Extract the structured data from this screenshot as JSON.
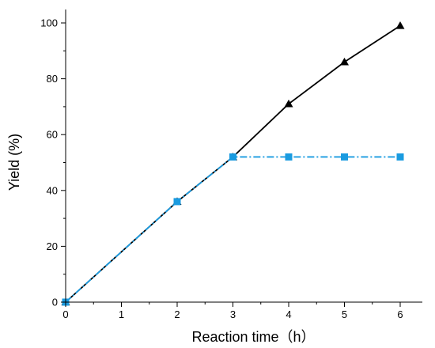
{
  "chart_data": {
    "type": "line",
    "title": "",
    "xlabel": "Reaction time（h）",
    "ylabel": "Yield (%)",
    "xlim": [
      0,
      6
    ],
    "ylim": [
      0,
      100
    ],
    "x_ticks": [
      "0",
      "1",
      "2",
      "3",
      "4",
      "5",
      "6"
    ],
    "y_ticks": [
      "0",
      "20",
      "40",
      "60",
      "80",
      "100"
    ],
    "grid": false,
    "legend": "none",
    "series": [
      {
        "color": "#000000",
        "line_style": "solid",
        "marker": "triangle",
        "x": [
          0,
          2,
          3,
          4,
          5,
          6
        ],
        "y": [
          0,
          36,
          52,
          71,
          86,
          99
        ]
      },
      {
        "color": "#1a9be0",
        "line_style": "dash-dot",
        "marker": "square",
        "x": [
          0,
          2,
          3,
          4,
          5,
          6
        ],
        "y": [
          0,
          36,
          52,
          52,
          52,
          52
        ]
      }
    ]
  }
}
